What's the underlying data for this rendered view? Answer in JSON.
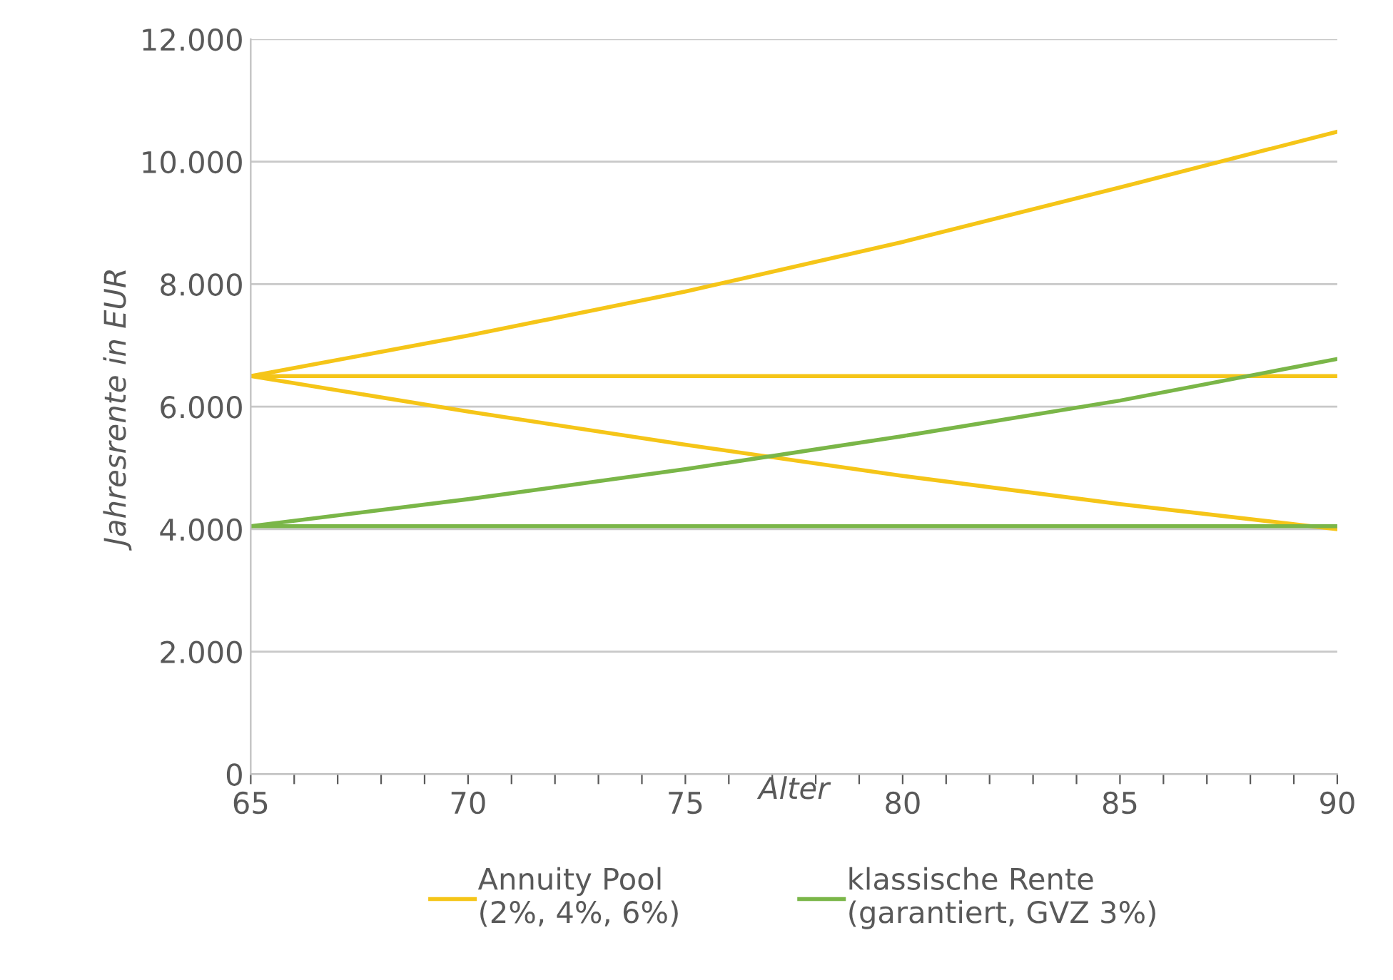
{
  "chart_data": {
    "type": "line",
    "xlabel": "Alter",
    "ylabel": "Jahresrente in EUR",
    "x": [
      65,
      70,
      75,
      80,
      85,
      90
    ],
    "series": [
      {
        "name": "Annuity Pool\n(2%, 4%, 6%)",
        "color": "#f5c518",
        "values": [
          6500,
          7160,
          7880,
          8690,
          9580,
          10490
        ]
      },
      {
        "color": "#f5c518",
        "values": [
          6500,
          6500,
          6500,
          6500,
          6500,
          6500
        ]
      },
      {
        "color": "#f5c518",
        "values": [
          6500,
          5920,
          5380,
          4870,
          4410,
          4000
        ]
      },
      {
        "name": "klassische Rente\n(garantiert, GVZ 3%)",
        "color": "#7ab648",
        "values": [
          4050,
          4490,
          4980,
          5520,
          6100,
          6780
        ]
      },
      {
        "color": "#7ab648",
        "values": [
          4050,
          4050,
          4050,
          4050,
          4050,
          4050
        ]
      }
    ],
    "xlim": [
      65,
      90
    ],
    "ylim": [
      0,
      12000
    ],
    "xticks": [
      65,
      {
        "value": 66,
        "label": null
      },
      {
        "value": 67,
        "label": null
      },
      {
        "value": 68,
        "label": null
      },
      {
        "value": 69,
        "label": null
      },
      70,
      {
        "value": 71,
        "label": null
      },
      {
        "value": 72,
        "label": null
      },
      {
        "value": 73,
        "label": null
      },
      {
        "value": 74,
        "label": null
      },
      75,
      {
        "value": 76,
        "label": null
      },
      {
        "value": 77,
        "label": null
      },
      {
        "value": 78,
        "label": null
      },
      {
        "value": 79,
        "label": null
      },
      80,
      {
        "value": 81,
        "label": null
      },
      {
        "value": 82,
        "label": null
      },
      {
        "value": 83,
        "label": null
      },
      {
        "value": 84,
        "label": null
      },
      85,
      {
        "value": 86,
        "label": null
      },
      {
        "value": 87,
        "label": null
      },
      {
        "value": 88,
        "label": null
      },
      {
        "value": 89,
        "label": null
      },
      90
    ],
    "yticks": [
      {
        "value": 0,
        "label": "0"
      },
      {
        "value": 2000,
        "label": "2.000"
      },
      {
        "value": 4000,
        "label": "4.000"
      },
      {
        "value": 6000,
        "label": "6.000"
      },
      {
        "value": 8000,
        "label": "8.000"
      },
      {
        "value": 10000,
        "label": "10.000"
      },
      {
        "value": 12000,
        "label": "12.000"
      }
    ],
    "grid": "y",
    "legend": "bottom",
    "marker": "none",
    "line_style": "solid"
  }
}
